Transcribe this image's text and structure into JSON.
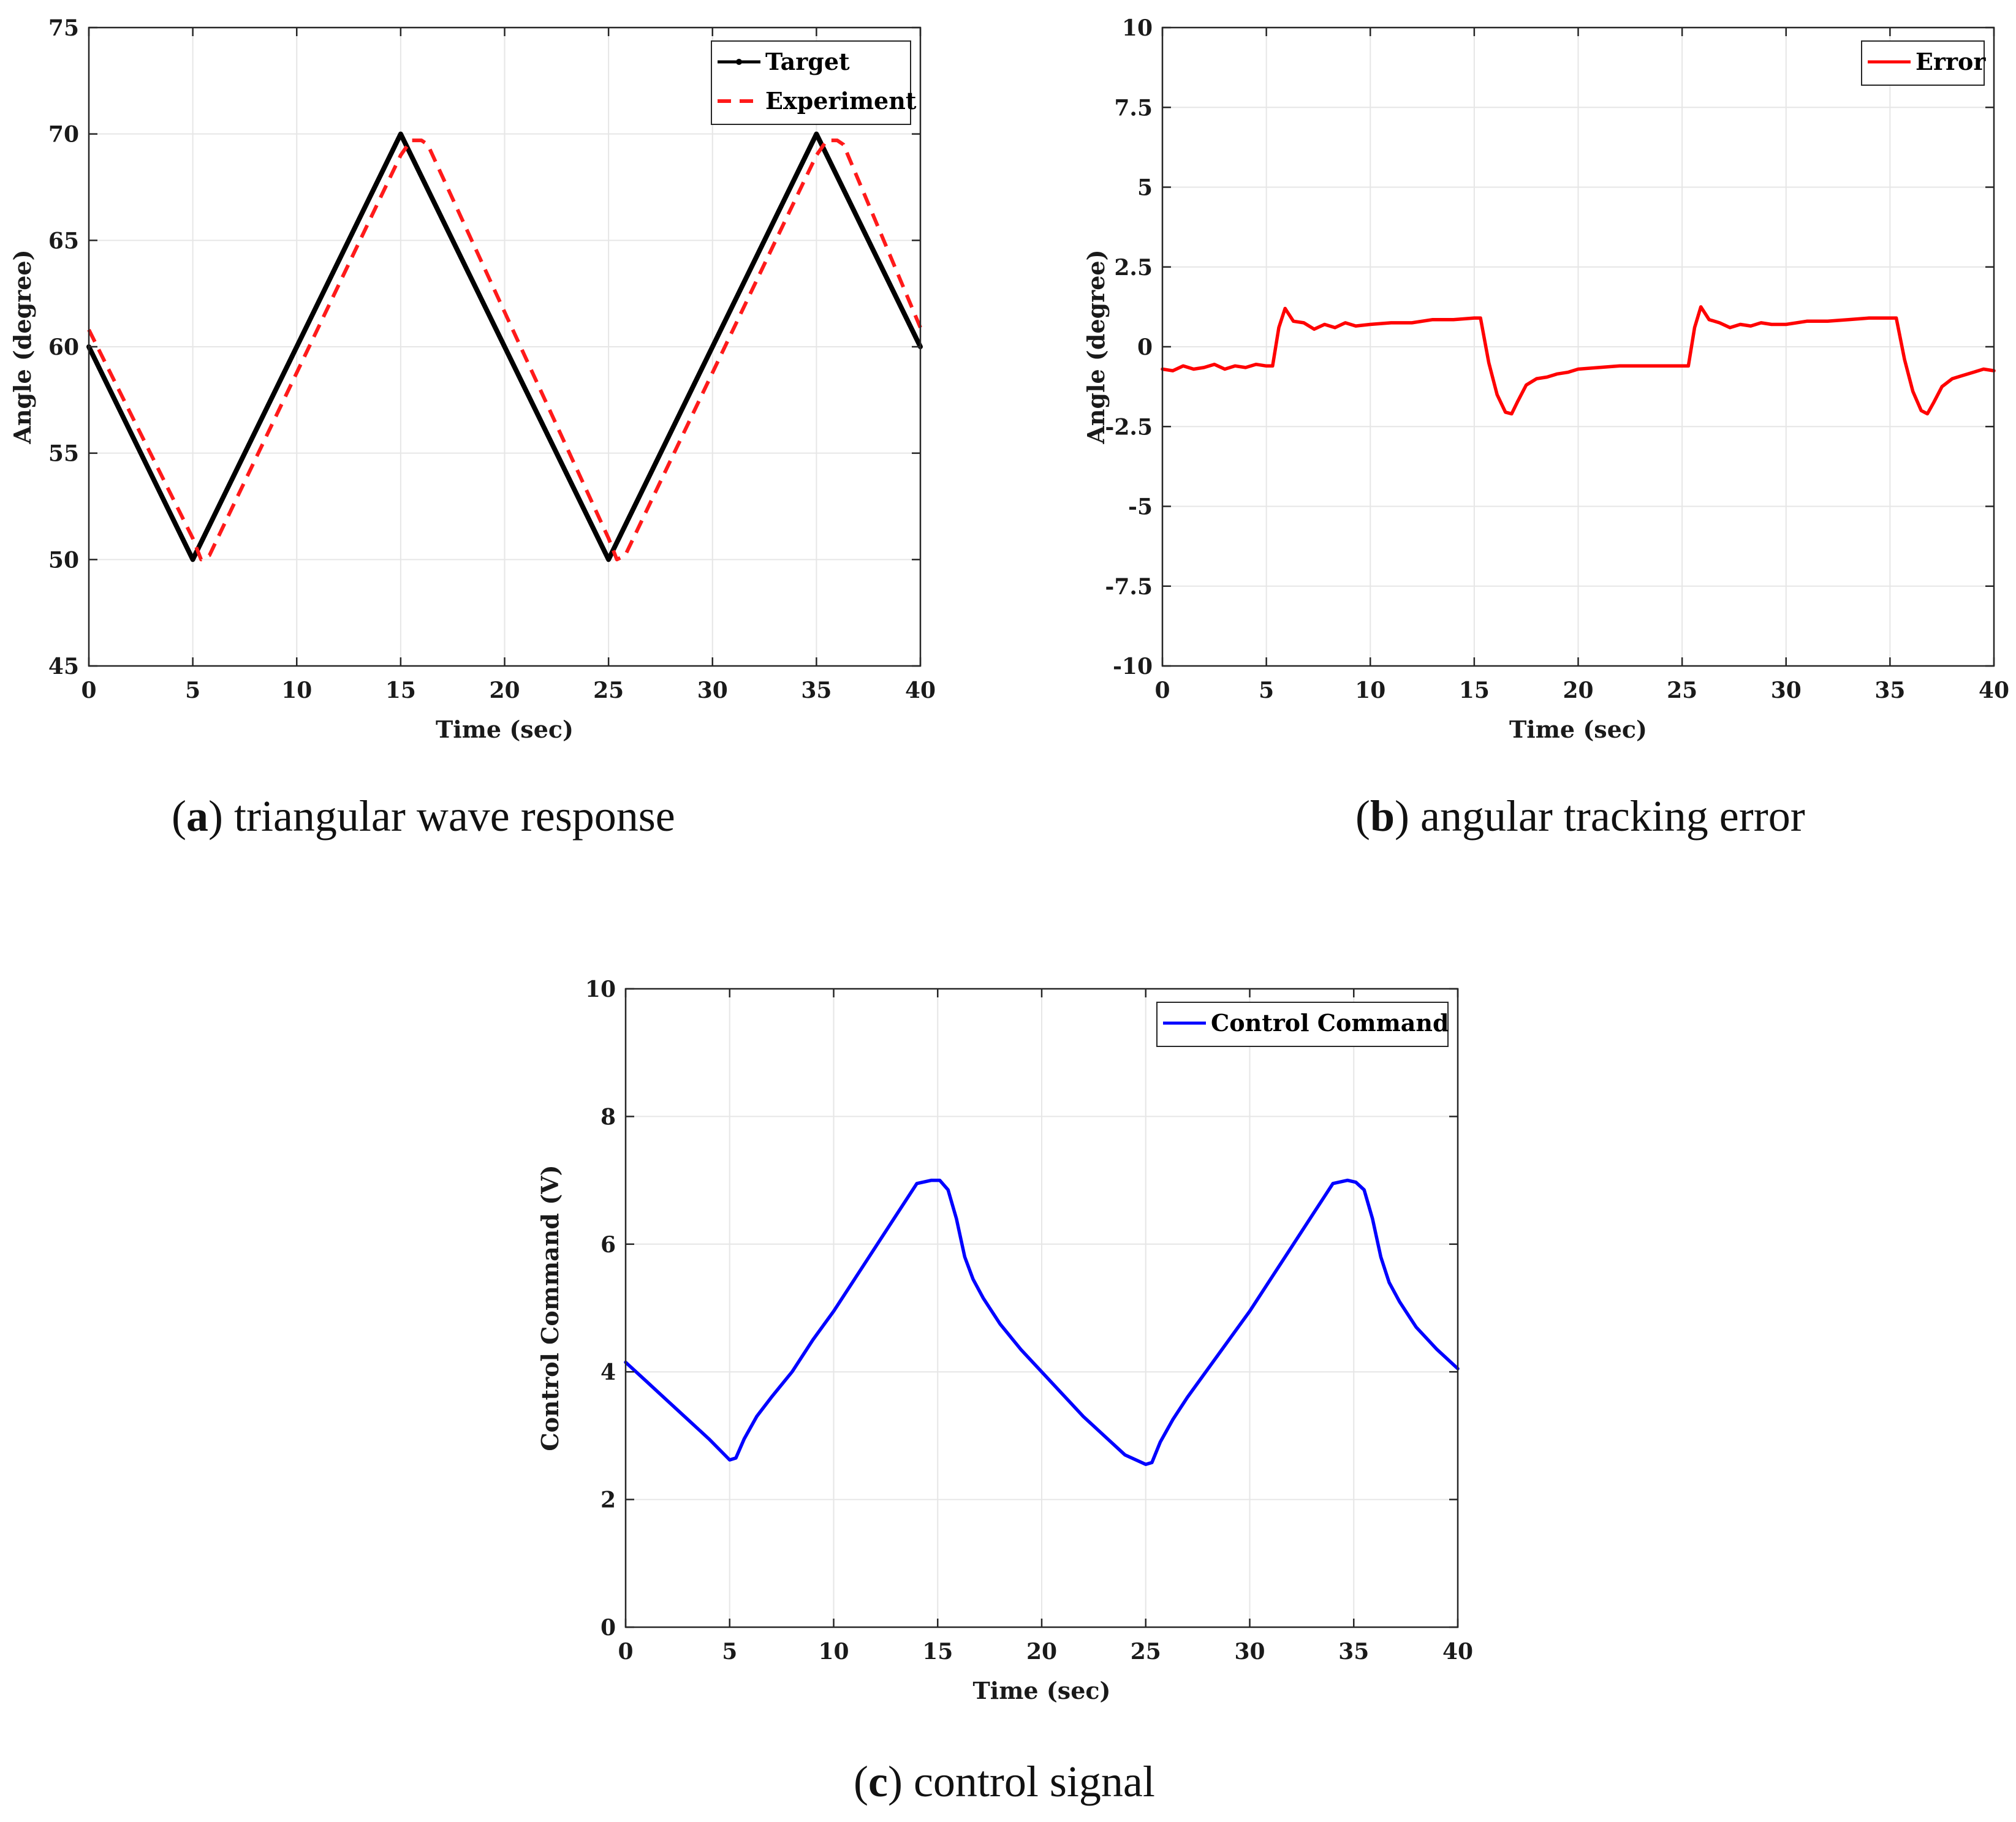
{
  "figure": {
    "captions": [
      {
        "letter": "a",
        "text": " triangular wave response"
      },
      {
        "letter": "b",
        "text": " angular tracking error"
      },
      {
        "letter": "c",
        "text": " control signal"
      }
    ]
  },
  "chart_data": [
    {
      "id": "a",
      "type": "line",
      "title": "",
      "xlabel": "Time (sec)",
      "ylabel": "Angle (degree)",
      "xlim": [
        0,
        40
      ],
      "ylim": [
        45,
        75
      ],
      "xticks": [
        0,
        5,
        10,
        15,
        20,
        25,
        30,
        35,
        40
      ],
      "yticks": [
        45,
        50,
        55,
        60,
        65,
        70,
        75
      ],
      "ytick_labels": [
        "45",
        "50",
        "55",
        "60",
        "65",
        "70",
        "75"
      ],
      "grid": true,
      "legend_position": "top-right",
      "series": [
        {
          "name": "Target",
          "color": "#000000",
          "style": "solid-marker",
          "x": [
            0,
            5,
            15,
            25,
            35,
            40
          ],
          "y": [
            60,
            50,
            70,
            50,
            70,
            60
          ]
        },
        {
          "name": "Experiment",
          "color": "#ff1a1a",
          "style": "dashed",
          "x": [
            0,
            5.0,
            5.4,
            5.8,
            15.0,
            15.5,
            16.0,
            16.3,
            25.0,
            25.4,
            25.8,
            35.0,
            35.5,
            36.0,
            36.3,
            40
          ],
          "y": [
            60.8,
            51.0,
            50.0,
            50.2,
            69.0,
            69.7,
            69.7,
            69.5,
            51.0,
            50.0,
            50.2,
            69.0,
            69.7,
            69.7,
            69.5,
            60.9
          ]
        }
      ]
    },
    {
      "id": "b",
      "type": "line",
      "title": "",
      "xlabel": "Time (sec)",
      "ylabel": "Angle (degree)",
      "xlim": [
        0,
        40
      ],
      "ylim": [
        -10,
        10
      ],
      "xticks": [
        0,
        5,
        10,
        15,
        20,
        25,
        30,
        35,
        40
      ],
      "yticks": [
        -10,
        -7.5,
        -5,
        -2.5,
        0,
        2.5,
        5,
        7.5,
        10
      ],
      "ytick_labels": [
        "-10",
        "-7.5",
        "-5",
        "-2.5",
        "0",
        "2.5",
        "5",
        "7.5",
        "10"
      ],
      "grid": true,
      "legend_position": "top-right",
      "series": [
        {
          "name": "Error",
          "color": "#ff0000",
          "style": "solid",
          "x": [
            0,
            0.5,
            1,
            1.5,
            2,
            2.5,
            3,
            3.5,
            4,
            4.5,
            5,
            5.3,
            5.6,
            5.9,
            6.3,
            6.8,
            7.3,
            7.8,
            8.3,
            8.8,
            9.3,
            10,
            11,
            12,
            13,
            14,
            15.0,
            15.3,
            15.7,
            16.1,
            16.5,
            16.8,
            17.1,
            17.5,
            18,
            18.5,
            19,
            19.5,
            20,
            21,
            22,
            23,
            24,
            25.0,
            25.3,
            25.6,
            25.9,
            26.3,
            26.8,
            27.3,
            27.8,
            28.3,
            28.8,
            29.3,
            30,
            31,
            32,
            33,
            34,
            35.0,
            35.3,
            35.7,
            36.1,
            36.5,
            36.8,
            37.1,
            37.5,
            38,
            38.5,
            39,
            39.5,
            40
          ],
          "y": [
            -0.7,
            -0.75,
            -0.6,
            -0.7,
            -0.65,
            -0.55,
            -0.7,
            -0.6,
            -0.65,
            -0.55,
            -0.6,
            -0.6,
            0.6,
            1.2,
            0.8,
            0.75,
            0.55,
            0.7,
            0.6,
            0.75,
            0.65,
            0.7,
            0.75,
            0.75,
            0.85,
            0.85,
            0.9,
            0.9,
            -0.5,
            -1.5,
            -2.05,
            -2.1,
            -1.7,
            -1.2,
            -1.0,
            -0.95,
            -0.85,
            -0.8,
            -0.7,
            -0.65,
            -0.6,
            -0.6,
            -0.6,
            -0.6,
            -0.6,
            0.6,
            1.25,
            0.85,
            0.75,
            0.6,
            0.7,
            0.65,
            0.75,
            0.7,
            0.7,
            0.8,
            0.8,
            0.85,
            0.9,
            0.9,
            0.9,
            -0.4,
            -1.4,
            -2.0,
            -2.1,
            -1.75,
            -1.25,
            -1.0,
            -0.9,
            -0.8,
            -0.7,
            -0.75
          ]
        }
      ]
    },
    {
      "id": "c",
      "type": "line",
      "title": "",
      "xlabel": "Time (sec)",
      "ylabel": "Control Command (V)",
      "xlim": [
        0,
        40
      ],
      "ylim": [
        0,
        10
      ],
      "xticks": [
        0,
        5,
        10,
        15,
        20,
        25,
        30,
        35,
        40
      ],
      "yticks": [
        0,
        2,
        4,
        6,
        8,
        10
      ],
      "ytick_labels": [
        "0",
        "2",
        "4",
        "6",
        "8",
        "10"
      ],
      "grid": true,
      "legend_position": "top-right",
      "series": [
        {
          "name": "Control Command",
          "color": "#0000ff",
          "style": "solid",
          "x": [
            0,
            1,
            2,
            3,
            4,
            5.0,
            5.3,
            5.7,
            6.3,
            7,
            8,
            9,
            10,
            11,
            12,
            13,
            14,
            14.7,
            15.1,
            15.5,
            15.9,
            16.3,
            16.7,
            17.2,
            18,
            19,
            20,
            21,
            22,
            23,
            24,
            25.0,
            25.3,
            25.7,
            26.3,
            27,
            28,
            29,
            30,
            31,
            32,
            33,
            34,
            34.7,
            35.1,
            35.5,
            35.9,
            36.3,
            36.7,
            37.2,
            38,
            39,
            40
          ],
          "y": [
            4.15,
            3.85,
            3.55,
            3.25,
            2.95,
            2.62,
            2.65,
            2.95,
            3.3,
            3.6,
            4.0,
            4.5,
            4.95,
            5.45,
            5.95,
            6.45,
            6.95,
            7.0,
            7.0,
            6.85,
            6.4,
            5.8,
            5.45,
            5.15,
            4.75,
            4.35,
            4.0,
            3.65,
            3.3,
            3.0,
            2.7,
            2.55,
            2.58,
            2.9,
            3.25,
            3.6,
            4.05,
            4.5,
            4.95,
            5.45,
            5.95,
            6.45,
            6.95,
            7.0,
            6.97,
            6.85,
            6.4,
            5.8,
            5.4,
            5.1,
            4.7,
            4.35,
            4.05
          ]
        }
      ]
    }
  ]
}
